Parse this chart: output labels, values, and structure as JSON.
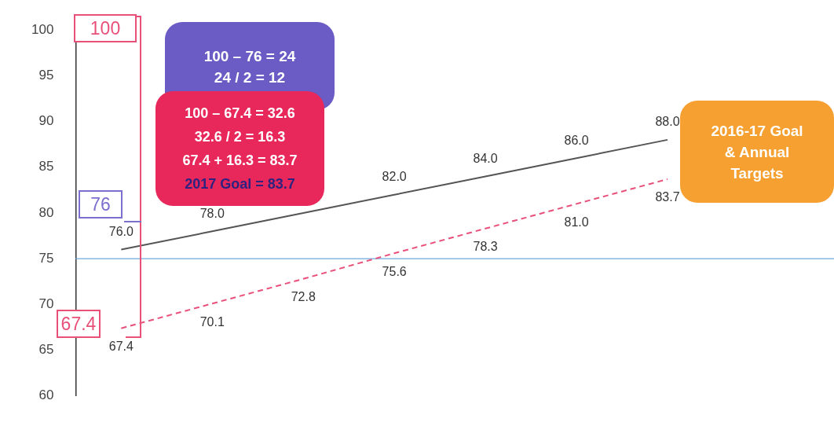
{
  "chart_data": {
    "type": "line",
    "categories": [
      null,
      null,
      null,
      null,
      null,
      null,
      null
    ],
    "series": [
      {
        "color": "#555555",
        "line_style": "solid",
        "values": [
          76.0,
          78.0,
          80.0,
          82.0,
          84.0,
          86.0,
          88.0
        ],
        "value_labels": [
          "76.0",
          "78.0",
          null,
          "82.0",
          "84.0",
          "86.0",
          "88.0"
        ]
      },
      {
        "color": "#e8507a",
        "line_style": "dashed",
        "values": [
          67.4,
          70.1,
          72.8,
          75.6,
          78.3,
          81.0,
          83.7
        ],
        "value_labels": [
          "67.4",
          "70.1",
          "72.8",
          "75.6",
          "78.3",
          "81.0",
          "83.7"
        ]
      }
    ],
    "ylim": [
      60,
      100
    ],
    "yticks": [
      60,
      65,
      70,
      75,
      80,
      85,
      90,
      95,
      100
    ],
    "grid": false,
    "legend": false,
    "marker": "none",
    "tick_labels": "y",
    "ref_lines": [
      {
        "axis": "y",
        "value": 75,
        "color": "#6fa8dc"
      }
    ],
    "annotations": [
      "2016-17 Goal\n& Annual\nTargets",
      "100 – 76 = 24\n24 / 2 = 12",
      "100 – 67.4 = 32.6\n32.6 / 2 = 16.3\n67.4 + 16.3 = 83.7\n2017  Goal = 83.7",
      "100",
      "76",
      "67.4"
    ]
  }
}
